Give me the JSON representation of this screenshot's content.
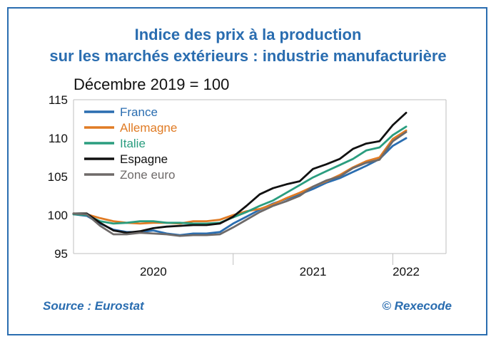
{
  "chart_data": {
    "type": "line",
    "title": "Indice des prix à la production",
    "title_line2": "sur les marchés extérieurs : industrie manufacturière",
    "subtitle": "Décembre 2019 = 100",
    "ylim": [
      95,
      115
    ],
    "yticks": [
      95,
      100,
      105,
      110,
      115
    ],
    "x_groups": [
      {
        "label": "2020",
        "start": 0,
        "end": 12
      },
      {
        "label": "2021",
        "start": 12,
        "end": 24
      },
      {
        "label": "2022",
        "start": 24,
        "end": 26
      }
    ],
    "x_range": [
      0,
      28
    ],
    "grid": false,
    "legend_position": "top-left",
    "x": [
      0,
      1,
      2,
      3,
      4,
      5,
      6,
      7,
      8,
      9,
      10,
      11,
      12,
      13,
      14,
      15,
      16,
      17,
      18,
      19,
      20,
      21,
      22,
      23,
      24,
      25
    ],
    "series": [
      {
        "name": "France",
        "color": "#2a6db0",
        "values": [
          100.1,
          99.9,
          98.9,
          98.1,
          97.8,
          97.8,
          98.0,
          97.6,
          97.4,
          97.6,
          97.6,
          97.8,
          98.9,
          99.8,
          100.7,
          101.5,
          102.1,
          102.7,
          103.4,
          104.2,
          104.8,
          105.6,
          106.4,
          107.3,
          109.0,
          110.0
        ]
      },
      {
        "name": "Allemagne",
        "color": "#e07b24",
        "values": [
          100.2,
          100.1,
          99.6,
          99.2,
          99.0,
          98.9,
          99.0,
          99.0,
          98.9,
          99.2,
          99.2,
          99.4,
          100.0,
          100.5,
          100.8,
          101.4,
          102.2,
          102.9,
          103.7,
          104.4,
          105.2,
          106.2,
          107.0,
          107.5,
          109.9,
          111.0
        ]
      },
      {
        "name": "Italie",
        "color": "#2a9d7f",
        "values": [
          100.1,
          100.0,
          99.2,
          98.9,
          99.0,
          99.2,
          99.2,
          99.0,
          99.0,
          98.9,
          98.9,
          99.0,
          99.7,
          100.4,
          101.2,
          101.9,
          102.9,
          103.9,
          104.9,
          105.7,
          106.5,
          107.3,
          108.4,
          108.8,
          110.4,
          111.5
        ]
      },
      {
        "name": "Espagne",
        "color": "#111111",
        "values": [
          100.2,
          100.2,
          99.0,
          98.0,
          97.7,
          97.9,
          98.3,
          98.5,
          98.6,
          98.7,
          98.7,
          98.9,
          99.8,
          101.2,
          102.7,
          103.5,
          104.0,
          104.4,
          106.0,
          106.6,
          107.3,
          108.6,
          109.3,
          109.6,
          111.7,
          113.3
        ]
      },
      {
        "name": "Zone euro",
        "color": "#6e6a69",
        "values": [
          100.2,
          100.1,
          98.6,
          97.5,
          97.5,
          97.7,
          97.6,
          97.5,
          97.3,
          97.4,
          97.4,
          97.5,
          98.4,
          99.4,
          100.4,
          101.2,
          101.8,
          102.5,
          103.7,
          104.5,
          105.0,
          106.1,
          106.8,
          107.2,
          109.6,
          110.8
        ]
      }
    ]
  },
  "footer": {
    "source": "Source : Eurostat",
    "copyright": "© Rexecode"
  }
}
